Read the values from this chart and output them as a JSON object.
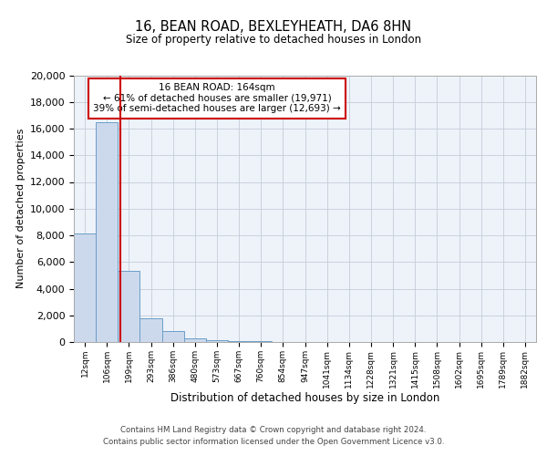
{
  "title1": "16, BEAN ROAD, BEXLEYHEATH, DA6 8HN",
  "title2": "Size of property relative to detached houses in London",
  "xlabel": "Distribution of detached houses by size in London",
  "ylabel": "Number of detached properties",
  "bar_labels": [
    "12sqm",
    "106sqm",
    "199sqm",
    "293sqm",
    "386sqm",
    "480sqm",
    "573sqm",
    "667sqm",
    "760sqm",
    "854sqm",
    "947sqm",
    "1041sqm",
    "1134sqm",
    "1228sqm",
    "1321sqm",
    "1415sqm",
    "1508sqm",
    "1602sqm",
    "1695sqm",
    "1789sqm",
    "1882sqm"
  ],
  "bar_values": [
    8150,
    16500,
    5300,
    1750,
    800,
    300,
    150,
    100,
    70,
    0,
    0,
    0,
    0,
    0,
    0,
    0,
    0,
    0,
    0,
    0,
    0
  ],
  "bar_color": "#ccd9ec",
  "bar_edge_color": "#6b9ec8",
  "red_line_color": "#cc0000",
  "annotation_text_line1": "16 BEAN ROAD: 164sqm",
  "annotation_text_line2": "← 61% of detached houses are smaller (19,971)",
  "annotation_text_line3": "39% of semi-detached houses are larger (12,693) →",
  "ylim": [
    0,
    20000
  ],
  "yticks": [
    0,
    2000,
    4000,
    6000,
    8000,
    10000,
    12000,
    14000,
    16000,
    18000,
    20000
  ],
  "footer1": "Contains HM Land Registry data © Crown copyright and database right 2024.",
  "footer2": "Contains public sector information licensed under the Open Government Licence v3.0.",
  "bg_color": "#eef2f9",
  "grid_color": "#c5cdd8"
}
